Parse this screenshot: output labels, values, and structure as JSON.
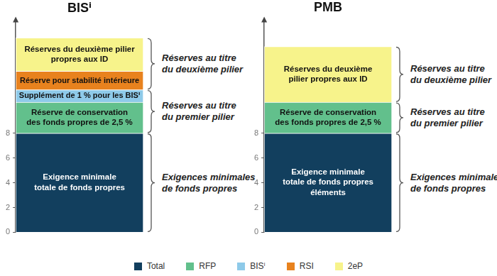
{
  "chart_data": {
    "type": "bar",
    "stacked": true,
    "categories": [
      "BISⁱ",
      "PMB"
    ],
    "ylim": [
      0,
      17
    ],
    "yticks": [
      0,
      2,
      4,
      6,
      8
    ],
    "grid": false,
    "tick_labels": "y",
    "legend": "bottom",
    "series": [
      {
        "name": "Total",
        "color": "#123f5e",
        "values": [
          8,
          8
        ],
        "segment_texts": [
          [
            "Exigence minimale",
            "totale de fonds propres"
          ],
          [
            "Exigence minimale",
            "totale de fonds propres",
            "éléments"
          ]
        ]
      },
      {
        "name": "RFP",
        "color": "#62c08c",
        "values": [
          2.5,
          2.5
        ],
        "segment_texts": [
          [
            "Réserve de conservation",
            "des fonds propres de 2,5 %"
          ],
          [
            "Réserve de conservation",
            "des fonds propres de 2,5 %"
          ]
        ]
      },
      {
        "name": "BISⁱ",
        "color": "#8ecae9",
        "values": [
          1,
          null
        ],
        "segment_texts": [
          [
            "Supplément de 1 % pour les BISⁱ"
          ],
          null
        ]
      },
      {
        "name": "RSI",
        "color": "#e8821e",
        "values": [
          1.5,
          null
        ],
        "segment_texts": [
          [
            "Réserve pour stabilité intérieure"
          ],
          null
        ]
      },
      {
        "name": "2eP",
        "color": "#f7f38b",
        "values": [
          2.7,
          4.5
        ],
        "segment_texts": [
          [
            "Réserves du deuxième pilier",
            "propres aux ID"
          ],
          [
            "Réserves du deuxième",
            "pilier propres aux ID"
          ]
        ]
      }
    ],
    "groups": [
      [
        {
          "label": [
            "Réserves au titre",
            "du deuxième pilier"
          ],
          "series": [
            "RSI",
            "2eP"
          ]
        },
        {
          "label": [
            "Réserves au titre",
            "du premier pilier"
          ],
          "series": [
            "BISⁱ",
            "RFP"
          ]
        },
        {
          "label": [
            "Exigences minimales",
            "de fonds propres"
          ],
          "series": [
            "Total"
          ]
        }
      ],
      [
        {
          "label": [
            "Réserves au titre",
            "du deuxième pilier"
          ],
          "series": [
            "2eP"
          ]
        },
        {
          "label": [
            "Réserves au titre",
            "du premier pilier"
          ],
          "series": [
            "RFP"
          ]
        },
        {
          "label": [
            "Exigences minimales",
            "de fonds propres"
          ],
          "series": [
            "Total"
          ]
        }
      ]
    ]
  }
}
